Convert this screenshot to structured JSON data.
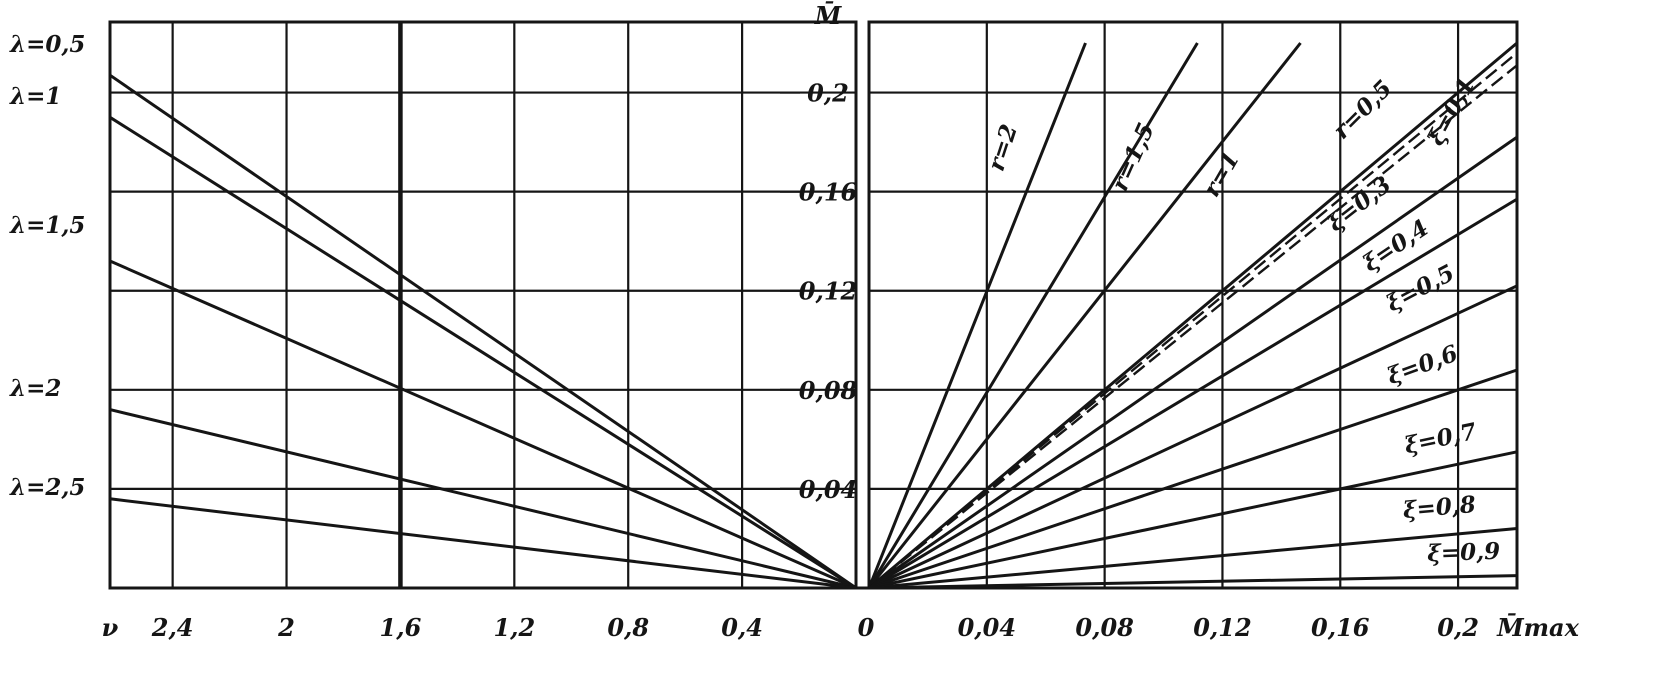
{
  "chart_data": [
    {
      "type": "line",
      "panel": "left",
      "xlabel": "ν",
      "ylabel": "",
      "xlim": [
        2.62,
        0
      ],
      "ylim": [
        0,
        0.22
      ],
      "x_ticks": [
        "2,4",
        "2",
        "1,6",
        "1,2",
        "0,8",
        "0,4"
      ],
      "x_tick_values": [
        2.4,
        2.0,
        1.6,
        1.2,
        0.8,
        0.4
      ],
      "grid": true,
      "series": [
        {
          "name": "λ=0,5",
          "x": [
            0,
            2.62
          ],
          "y": [
            0,
            0.207
          ]
        },
        {
          "name": "λ=1",
          "x": [
            0,
            2.62
          ],
          "y": [
            0,
            0.19
          ]
        },
        {
          "name": "λ=1,5",
          "x": [
            0,
            2.62
          ],
          "y": [
            0,
            0.132
          ]
        },
        {
          "name": "λ=2",
          "x": [
            0,
            2.62
          ],
          "y": [
            0,
            0.072
          ]
        },
        {
          "name": "λ=2,5",
          "x": [
            0,
            2.62
          ],
          "y": [
            0,
            0.036
          ]
        }
      ]
    },
    {
      "type": "line",
      "panel": "right",
      "xlabel": "M̄max",
      "ylabel": "M̄",
      "xlim": [
        0,
        0.22
      ],
      "ylim": [
        0,
        0.22
      ],
      "x_ticks": [
        "0",
        "0,04",
        "0,08",
        "0,12",
        "0,16",
        "0,2"
      ],
      "x_tick_values": [
        0,
        0.04,
        0.08,
        0.12,
        0.16,
        0.2
      ],
      "y_ticks": [
        "0,04",
        "0,08",
        "0,12",
        "0,16",
        "0,2"
      ],
      "y_tick_values": [
        0.04,
        0.08,
        0.12,
        0.16,
        0.2
      ],
      "grid": true,
      "series": [
        {
          "name": "r=2",
          "x": [
            0,
            0.0735
          ],
          "y": [
            0,
            0.22
          ],
          "style": "solid"
        },
        {
          "name": "r=1,5",
          "x": [
            0,
            0.1115
          ],
          "y": [
            0,
            0.22
          ],
          "style": "solid"
        },
        {
          "name": "r=1",
          "x": [
            0,
            0.1465
          ],
          "y": [
            0,
            0.22
          ],
          "style": "solid"
        },
        {
          "name": "r=0,5",
          "x": [
            0,
            0.22
          ],
          "y": [
            0,
            0.22
          ],
          "style": "solid"
        },
        {
          "name": "ξ=0,1",
          "x": [
            0,
            0.22
          ],
          "y": [
            0,
            0.216
          ],
          "style": "dashed"
        },
        {
          "name": "",
          "x": [
            0,
            0.22
          ],
          "y": [
            0,
            0.211
          ],
          "style": "dashed"
        },
        {
          "name": "ξ=0,3",
          "x": [
            0,
            0.22
          ],
          "y": [
            0,
            0.182
          ],
          "style": "solid"
        },
        {
          "name": "ξ=0,4",
          "x": [
            0,
            0.22
          ],
          "y": [
            0,
            0.157
          ],
          "style": "solid"
        },
        {
          "name": "ξ=0,5",
          "x": [
            0,
            0.22
          ],
          "y": [
            0,
            0.122
          ],
          "style": "solid"
        },
        {
          "name": "ξ=0,6",
          "x": [
            0,
            0.22
          ],
          "y": [
            0,
            0.088
          ],
          "style": "solid"
        },
        {
          "name": "ξ=0,7",
          "x": [
            0,
            0.22
          ],
          "y": [
            0,
            0.055
          ],
          "style": "solid"
        },
        {
          "name": "ξ=0,8",
          "x": [
            0,
            0.22
          ],
          "y": [
            0,
            0.024
          ],
          "style": "solid"
        },
        {
          "name": "ξ=0,9",
          "x": [
            0,
            0.22
          ],
          "y": [
            0,
            0.005
          ],
          "style": "solid"
        }
      ]
    }
  ],
  "colors": {
    "ink": "#151515",
    "paper": "#ffffff"
  }
}
